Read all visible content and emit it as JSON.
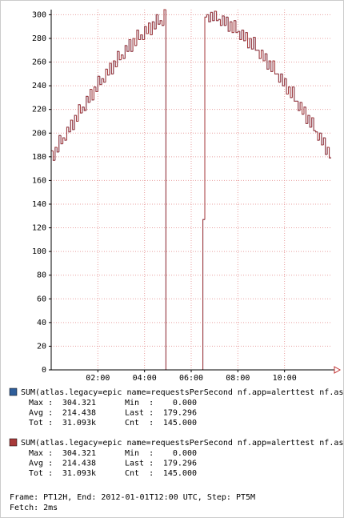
{
  "chart_data": {
    "type": "line",
    "x": [
      0,
      5,
      10,
      15,
      20,
      25,
      30,
      35,
      40,
      45,
      50,
      55,
      60,
      65,
      70,
      75,
      80,
      85,
      90,
      95,
      100,
      105,
      110,
      115,
      120,
      125,
      130,
      135,
      140,
      145,
      150,
      155,
      160,
      165,
      170,
      175,
      180,
      185,
      190,
      195,
      200,
      205,
      210,
      215,
      220,
      225,
      230,
      235,
      240,
      245,
      250,
      255,
      260,
      265,
      270,
      275,
      280,
      285,
      290,
      295,
      300,
      305,
      310,
      315,
      320,
      325,
      330,
      335,
      340,
      345,
      350,
      355,
      360,
      365,
      370,
      375,
      380,
      385,
      390,
      395,
      400,
      405,
      410,
      415,
      420,
      425,
      430,
      435,
      440,
      445,
      450,
      455,
      460,
      465,
      470,
      475,
      480,
      485,
      490,
      495,
      500,
      505,
      510,
      515,
      520,
      525,
      530,
      535,
      540,
      545,
      550,
      555,
      560,
      565,
      570,
      575,
      580,
      585,
      590,
      595,
      600,
      605,
      610,
      615,
      620,
      625,
      630,
      635,
      640,
      645,
      650,
      655,
      660,
      665,
      670,
      675,
      680,
      685,
      690,
      695,
      700,
      705,
      710,
      715,
      720
    ],
    "xlim": [
      0,
      720
    ],
    "xticks": [
      {
        "value": 120,
        "label": "02:00"
      },
      {
        "value": 240,
        "label": "04:00"
      },
      {
        "value": 360,
        "label": "06:00"
      },
      {
        "value": 480,
        "label": "08:00"
      },
      {
        "value": 600,
        "label": "10:00"
      }
    ],
    "ylim": [
      0,
      304.321
    ],
    "yticks": [
      0,
      20,
      40,
      60,
      80,
      100,
      120,
      140,
      160,
      180,
      200,
      220,
      240,
      260,
      280,
      300
    ],
    "grid": true,
    "series": [
      {
        "name": "SUM(atlas.legacy=epic name=requestsPerSecond nf.app=alerttest nf.asg",
        "color": "#2f5e9a",
        "values": [
          185,
          177,
          188,
          184,
          198,
          191,
          196,
          194,
          205,
          201,
          211,
          203,
          215,
          210,
          224,
          217,
          222,
          219,
          231,
          226,
          237,
          228,
          239,
          235,
          248,
          241,
          246,
          243,
          254,
          249,
          259,
          250,
          261,
          256,
          269,
          262,
          266,
          263,
          274,
          269,
          279,
          269,
          280,
          274,
          287,
          279,
          283,
          279,
          290,
          284,
          293,
          283,
          294,
          288,
          300,
          292,
          295,
          291,
          304.321,
          0,
          0,
          0,
          0,
          0,
          0,
          0,
          0,
          0,
          0,
          0,
          0,
          0,
          0,
          0,
          0,
          0,
          0,
          0,
          127,
          298,
          300,
          294,
          302,
          295,
          303,
          295,
          296,
          291,
          299,
          291,
          298,
          286,
          294,
          285,
          295,
          285,
          286,
          279,
          287,
          278,
          285,
          272,
          280,
          271,
          281,
          270,
          270,
          263,
          270,
          261,
          267,
          254,
          261,
          252,
          261,
          250,
          250,
          243,
          250,
          240,
          246,
          233,
          239,
          230,
          239,
          227,
          227,
          219,
          226,
          216,
          222,
          208,
          215,
          205,
          213,
          202,
          201,
          194,
          200,
          190,
          196,
          182,
          188,
          179,
          179.296
        ],
        "stats": [
          [
            "Max :",
            "304.321",
            "Min  :",
            "0.000"
          ],
          [
            "Avg :",
            "214.438",
            "Last :",
            "179.296"
          ],
          [
            "Tot :",
            "31.093k",
            "Cnt  :",
            "145.000"
          ]
        ]
      },
      {
        "name": "SUM(atlas.legacy=epic name=requestsPerSecond nf.app=alerttest nf.asg",
        "color": "#a83a3a",
        "values": [
          185,
          177,
          188,
          184,
          198,
          191,
          196,
          194,
          205,
          201,
          211,
          203,
          215,
          210,
          224,
          217,
          222,
          219,
          231,
          226,
          237,
          228,
          239,
          235,
          248,
          241,
          246,
          243,
          254,
          249,
          259,
          250,
          261,
          256,
          269,
          262,
          266,
          263,
          274,
          269,
          279,
          269,
          280,
          274,
          287,
          279,
          283,
          279,
          290,
          284,
          293,
          283,
          294,
          288,
          300,
          292,
          295,
          291,
          304.321,
          0,
          0,
          0,
          0,
          0,
          0,
          0,
          0,
          0,
          0,
          0,
          0,
          0,
          0,
          0,
          0,
          0,
          0,
          0,
          127,
          298,
          300,
          294,
          302,
          295,
          303,
          295,
          296,
          291,
          299,
          291,
          298,
          286,
          294,
          285,
          295,
          285,
          286,
          279,
          287,
          278,
          285,
          272,
          280,
          271,
          281,
          270,
          270,
          263,
          270,
          261,
          267,
          254,
          261,
          252,
          261,
          250,
          250,
          243,
          250,
          240,
          246,
          233,
          239,
          230,
          239,
          227,
          227,
          219,
          226,
          216,
          222,
          208,
          215,
          205,
          213,
          202,
          201,
          194,
          200,
          190,
          196,
          182,
          188,
          179,
          179.296
        ],
        "stats": [
          [
            "Max :",
            "304.321",
            "Min  :",
            "0.000"
          ],
          [
            "Avg :",
            "214.438",
            "Last :",
            "179.296"
          ],
          [
            "Tot :",
            "31.093k",
            "Cnt  :",
            "145.000"
          ]
        ]
      }
    ]
  },
  "footer": [
    "Frame: PT12H, End: 2012-01-01T12:00 UTC, Step: PT5M",
    "Fetch: 2ms"
  ]
}
